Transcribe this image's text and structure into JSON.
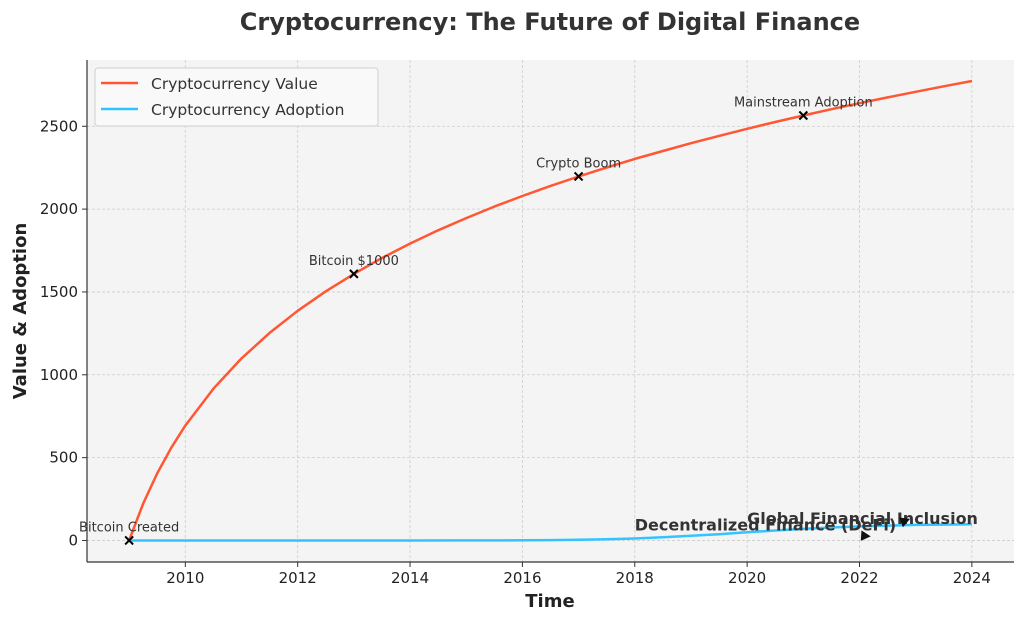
{
  "chart_data": {
    "type": "line",
    "title": "Cryptocurrency: The Future of Digital Finance",
    "xlabel": "Time",
    "ylabel": "Value & Adoption",
    "xlim": [
      2008.25,
      2024.75
    ],
    "ylim": [
      -130,
      2900
    ],
    "xticks": [
      2010,
      2012,
      2014,
      2016,
      2018,
      2020,
      2022,
      2024
    ],
    "yticks": [
      0,
      500,
      1000,
      1500,
      2000,
      2500
    ],
    "grid": true,
    "legend": {
      "placement": "top-left",
      "entries": [
        "Cryptocurrency Value",
        "Cryptocurrency Adoption"
      ]
    },
    "series": [
      {
        "name": "Cryptocurrency Value",
        "color": "#ff5733",
        "x": [
          2009,
          2009.25,
          2009.5,
          2009.75,
          2010,
          2010.5,
          2011,
          2011.5,
          2012,
          2012.5,
          2013,
          2013.5,
          2014,
          2014.5,
          2015,
          2015.5,
          2016,
          2016.5,
          2017,
          2017.5,
          2018,
          2018.5,
          2019,
          2019.5,
          2020,
          2020.5,
          2021,
          2021.5,
          2022,
          2022.5,
          2023,
          2023.5,
          2024
        ],
        "y": [
          0,
          223,
          405,
          560,
          693,
          916,
          1099,
          1253,
          1386,
          1504,
          1609,
          1705,
          1792,
          1872,
          1946,
          2015,
          2079,
          2140,
          2197,
          2251,
          2303,
          2351,
          2398,
          2442,
          2485,
          2526,
          2565,
          2603,
          2639,
          2674,
          2708,
          2741,
          2773
        ]
      },
      {
        "name": "Cryptocurrency Adoption",
        "color": "#33c4ff",
        "x": [
          2009,
          2010,
          2011,
          2012,
          2013,
          2014,
          2015,
          2016,
          2016.5,
          2017,
          2017.5,
          2018,
          2018.5,
          2019,
          2019.5,
          2020,
          2020.5,
          2021,
          2021.5,
          2022,
          2022.5,
          2023,
          2023.5,
          2024
        ],
        "y": [
          0,
          0,
          0,
          0,
          0,
          0,
          0.5,
          1,
          2,
          4,
          7,
          12,
          19,
          28,
          38,
          49,
          60,
          70,
          78,
          85,
          90,
          94,
          96,
          98
        ]
      }
    ],
    "markers": [
      {
        "x": 2009,
        "y": 0,
        "label": "Bitcoin Created"
      },
      {
        "x": 2013,
        "y": 1609,
        "label": "Bitcoin $1000"
      },
      {
        "x": 2017,
        "y": 2197,
        "label": "Crypto Boom"
      },
      {
        "x": 2021,
        "y": 2565,
        "label": "Mainstream Adoption"
      }
    ],
    "annotations": [
      {
        "text": "Decentralized Finance (DeFi)",
        "x": 2018,
        "y": 60,
        "arrow_to": [
          2022.2,
          25
        ]
      },
      {
        "text": "Global Financial Inclusion",
        "x": 2020,
        "y": 100,
        "arrow_to": [
          2022.9,
          130
        ]
      }
    ]
  }
}
